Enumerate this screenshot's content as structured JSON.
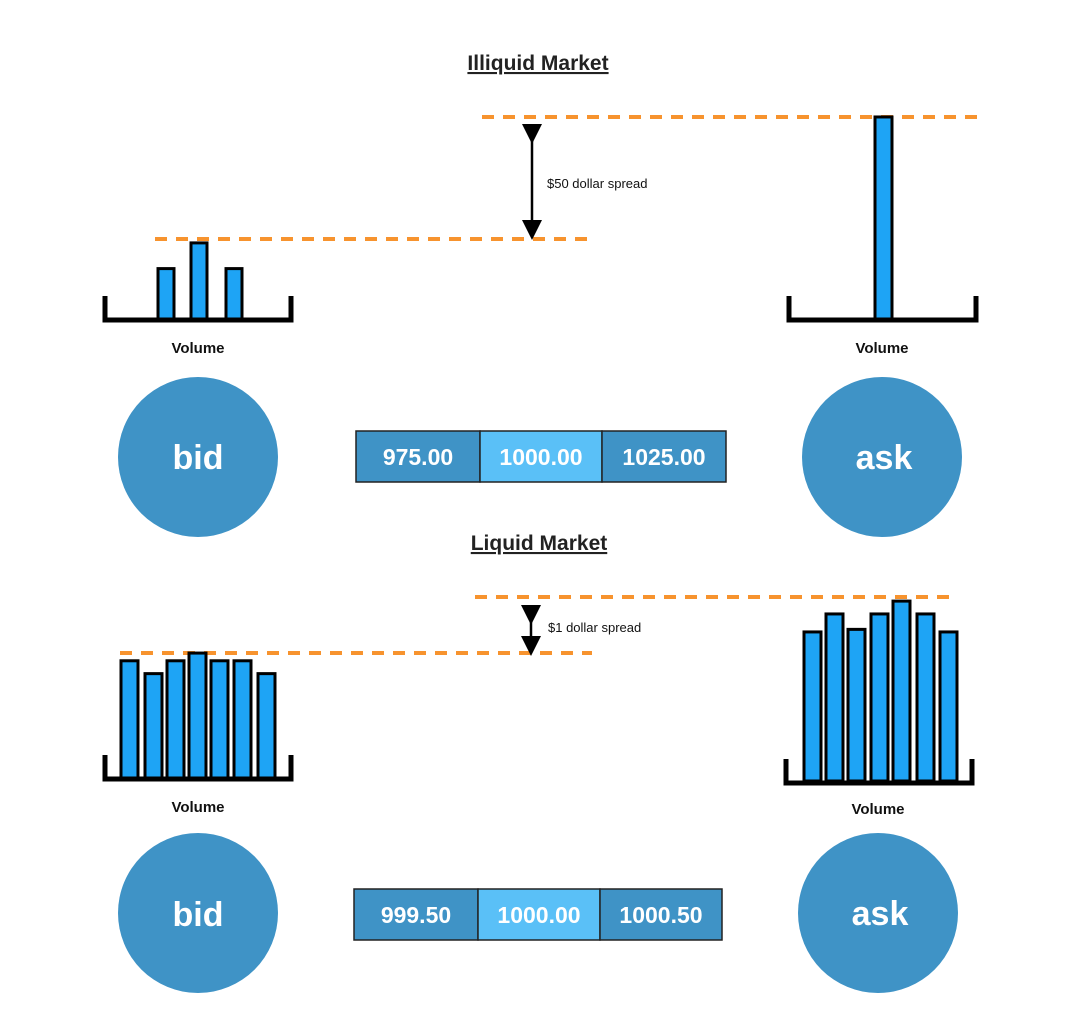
{
  "colors": {
    "bar": "#1ea4f5",
    "dashed_line": "#f7932e",
    "circle": "#3f93c6",
    "price_cell": "#3f93c6",
    "price_mid": "#5ac0f7",
    "outline": "#000000"
  },
  "illiquid": {
    "title": "Illiquid Market",
    "spread_label": "$50 dollar spread",
    "bid_volume_label": "Volume",
    "ask_volume_label": "Volume",
    "bid_label": "bid",
    "ask_label": "ask",
    "prices": [
      "975.00",
      "1000.00",
      "1025.00"
    ],
    "bid_volumes": [
      2,
      3,
      2
    ],
    "ask_volumes": [
      7.9
    ]
  },
  "liquid": {
    "title": "Liquid Market",
    "spread_label": "$1 dollar spread",
    "bid_volume_label": "Volume",
    "ask_volume_label": "Volume",
    "bid_label": "bid",
    "ask_label": "ask",
    "prices": [
      "999.50",
      "1000.00",
      "1000.50"
    ],
    "bid_volumes": [
      4.6,
      4.1,
      4.6,
      4.9,
      4.6,
      4.6,
      4.1
    ],
    "ask_volumes": [
      5.8,
      6.5,
      5.9,
      6.5,
      7.0,
      6.5,
      5.8
    ]
  }
}
